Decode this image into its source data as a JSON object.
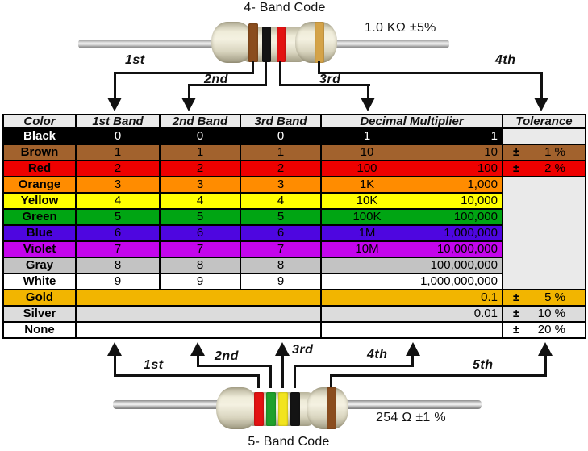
{
  "palette": {
    "brown": "#8a4d1e",
    "black": "#141414",
    "red": "#e31212",
    "gold": "#d4a348",
    "green": "#1fa02c",
    "yellow": "#f2e41e"
  },
  "top_section": {
    "title": "4- Band Code",
    "value_label": "1.0 KΩ ±5%",
    "bands": [
      "brown",
      "black",
      "red",
      "gold"
    ],
    "arrow_labels": {
      "a1": "1st",
      "a2": "2nd",
      "a3": "3rd",
      "a4": "4th"
    }
  },
  "bottom_section": {
    "title": "5- Band Code",
    "value_label": "254 Ω ±1 %",
    "bands": [
      "red",
      "green",
      "yellow",
      "black",
      "brown"
    ],
    "arrow_labels": {
      "a1": "1st",
      "a2": "2nd",
      "a3": "3rd",
      "a4": "4th",
      "a5": "5th"
    }
  },
  "table": {
    "plus_minus": "±",
    "empty_bg": "#eaeaea",
    "headers": {
      "color": "Color",
      "band1": "1st Band",
      "band2": "2nd Band",
      "band3": "3rd Band",
      "multiplier": "Decimal Multiplier",
      "tolerance": "Tolerance"
    },
    "rows": [
      {
        "name": "Black",
        "bg": "#000000",
        "fg": "#ffffff",
        "digits": [
          "0",
          "0",
          "0"
        ],
        "mult_short": "1",
        "mult_full": "1",
        "tol": null,
        "tol_kind": "empty"
      },
      {
        "name": "Brown",
        "bg": "#a2622d",
        "fg": "#000000",
        "digits": [
          "1",
          "1",
          "1"
        ],
        "mult_short": "10",
        "mult_full": "10",
        "tol": "1 %",
        "tol_kind": "self"
      },
      {
        "name": "Red",
        "bg": "#ee0000",
        "fg": "#000000",
        "digits": [
          "2",
          "2",
          "2"
        ],
        "mult_short": "100",
        "mult_full": "100",
        "tol": "2 %",
        "tol_kind": "self"
      },
      {
        "name": "Orange",
        "bg": "#ff8c00",
        "fg": "#000000",
        "digits": [
          "3",
          "3",
          "3"
        ],
        "mult_short": "1K",
        "mult_full": "1,000",
        "tol": null,
        "tol_kind": "merged_start"
      },
      {
        "name": "Yellow",
        "bg": "#ffff00",
        "fg": "#000000",
        "digits": [
          "4",
          "4",
          "4"
        ],
        "mult_short": "10K",
        "mult_full": "10,000",
        "tol": null,
        "tol_kind": "merged"
      },
      {
        "name": "Green",
        "bg": "#00a513",
        "fg": "#000000",
        "digits": [
          "5",
          "5",
          "5"
        ],
        "mult_short": "100K",
        "mult_full": "100,000",
        "tol": null,
        "tol_kind": "merged"
      },
      {
        "name": "Blue",
        "bg": "#4e06e0",
        "fg": "#000000",
        "digits": [
          "6",
          "6",
          "6"
        ],
        "mult_short": "1M",
        "mult_full": "1,000,000",
        "tol": null,
        "tol_kind": "merged"
      },
      {
        "name": "Violet",
        "bg": "#c405ec",
        "fg": "#000000",
        "digits": [
          "7",
          "7",
          "7"
        ],
        "mult_short": "10M",
        "mult_full": "10,000,000",
        "tol": null,
        "tol_kind": "merged"
      },
      {
        "name": "Gray",
        "bg": "#c3c3c3",
        "fg": "#000000",
        "digits": [
          "8",
          "8",
          "8"
        ],
        "mult_short": "",
        "mult_full": "100,000,000",
        "tol": null,
        "tol_kind": "merged"
      },
      {
        "name": "White",
        "bg": "#ffffff",
        "fg": "#000000",
        "digits": [
          "9",
          "9",
          "9"
        ],
        "mult_short": "",
        "mult_full": "1,000,000,000",
        "tol": null,
        "tol_kind": "merged"
      },
      {
        "name": "Gold",
        "bg": "#f2b500",
        "fg": "#000000",
        "digits": null,
        "mult_short": "",
        "mult_full": "0.1",
        "tol": "5 %",
        "tol_kind": "self"
      },
      {
        "name": "Silver",
        "bg": "#dcdcdc",
        "fg": "#000000",
        "digits": null,
        "mult_short": "",
        "mult_full": "0.01",
        "tol": "10 %",
        "tol_kind": "self"
      },
      {
        "name": "None",
        "bg": "#ffffff",
        "fg": "#000000",
        "digits": null,
        "mult_short": "",
        "mult_full": "",
        "tol": "20 %",
        "tol_kind": "self"
      }
    ]
  }
}
